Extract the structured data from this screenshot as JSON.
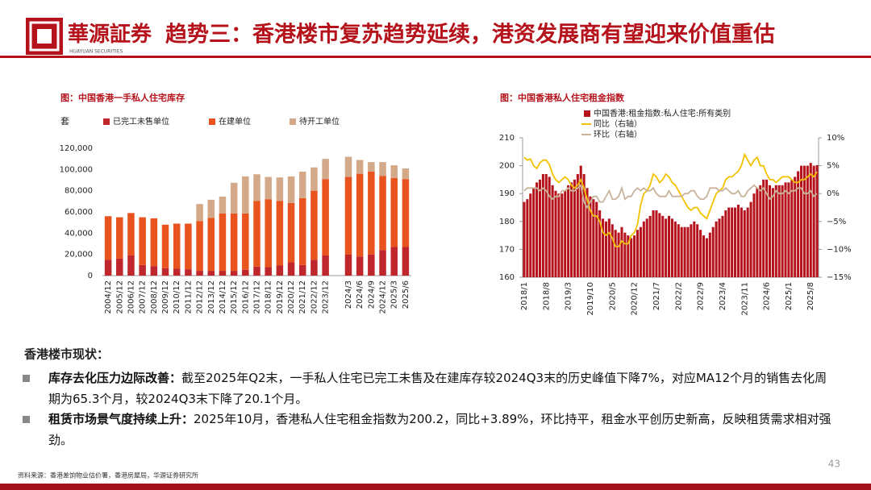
{
  "header": {
    "logo_text": "華源証券",
    "logo_subtext": "HUAYUAN SECURITIES",
    "title": "趋势三：香港楼市复苏趋势延续，港资发展商有望迎来价值重估"
  },
  "chart_data": [
    {
      "type": "bar",
      "stacked": true,
      "title": "图：中国香港一手私人住宅库存",
      "ylabel": "套",
      "categories": [
        "2004/12",
        "2005/12",
        "2006/12",
        "2007/12",
        "2008/12",
        "2009/12",
        "2010/12",
        "2011/12",
        "2012/12",
        "2013/12",
        "2014/12",
        "2015/12",
        "2016/12",
        "2017/12",
        "2018/12",
        "2019/12",
        "2020/12",
        "2021/12",
        "2022/12",
        "2023/12",
        null,
        "2024/3",
        "2024/6",
        "2024/9",
        "2024/12",
        "2025/3",
        "2025/6"
      ],
      "series": [
        {
          "name": "已完工未售单位",
          "color": "#c0272d",
          "values": [
            15000,
            16000,
            19000,
            10000,
            9000,
            7000,
            6500,
            6000,
            4500,
            4500,
            4500,
            4500,
            5500,
            8500,
            8000,
            9500,
            12500,
            10000,
            15000,
            19000,
            null,
            20000,
            18000,
            20000,
            24000,
            27000,
            27000
          ]
        },
        {
          "name": "在建单位",
          "color": "#e8531e",
          "values": [
            41000,
            39000,
            40000,
            45000,
            45000,
            41000,
            42500,
            43000,
            47000,
            50000,
            54000,
            54000,
            53000,
            62000,
            64000,
            61000,
            56000,
            63000,
            65000,
            72000,
            null,
            73000,
            78000,
            78000,
            70000,
            65000,
            64000
          ]
        },
        {
          "name": "待开工单位",
          "color": "#d4a98a",
          "values": [
            0,
            0,
            0,
            0,
            0,
            0,
            0,
            0,
            16000,
            17000,
            16000,
            29000,
            35000,
            25000,
            21000,
            22000,
            25000,
            25000,
            22000,
            19000,
            null,
            19000,
            13000,
            9000,
            13000,
            12000,
            10000
          ]
        }
      ],
      "ylim": [
        0,
        120000
      ],
      "yticks": [
        0,
        {
          "value": 20000,
          "label": "20,000"
        },
        {
          "value": 40000,
          "label": "40,000"
        },
        {
          "value": 60000,
          "label": "60,000"
        },
        {
          "value": 80000,
          "label": "80,000"
        },
        {
          "value": 100000,
          "label": "100,000"
        },
        {
          "value": 120000,
          "label": "120,000"
        }
      ],
      "grid": false,
      "legend": "top"
    },
    {
      "type": "bar",
      "title": "图：中国香港私人住宅租金指数",
      "categories": [
        "2018/1",
        null,
        null,
        null,
        null,
        null,
        null,
        "2018/8",
        null,
        null,
        null,
        null,
        null,
        null,
        "2019/3",
        null,
        null,
        null,
        null,
        null,
        null,
        "2019/10",
        null,
        null,
        null,
        null,
        null,
        null,
        "2020/5",
        null,
        null,
        null,
        null,
        null,
        null,
        "2020/12",
        null,
        null,
        null,
        null,
        null,
        null,
        "2021/7",
        null,
        null,
        null,
        null,
        null,
        null,
        "2022/2",
        null,
        null,
        null,
        null,
        null,
        null,
        "2022/9",
        null,
        null,
        null,
        null,
        null,
        null,
        "2023/4",
        null,
        null,
        null,
        null,
        null,
        null,
        "2023/11",
        null,
        null,
        null,
        null,
        null,
        null,
        "2024/6",
        null,
        null,
        null,
        null,
        null,
        null,
        "2025/1",
        null,
        null,
        null,
        null,
        null,
        null,
        "2025/8",
        null,
        null
      ],
      "series": [
        {
          "name": "中国香港:租金指数:私人住宅:所有类别",
          "color": "#b5121b",
          "type": "bar",
          "values": [
            187,
            188,
            190,
            192,
            194,
            195,
            197,
            197,
            196,
            193,
            191,
            190,
            190,
            191,
            193,
            194,
            195,
            197,
            200,
            197,
            192,
            189,
            188,
            187,
            184,
            181,
            180,
            181,
            179,
            177,
            176,
            178,
            176,
            175,
            174,
            175,
            177,
            178,
            180,
            181,
            182,
            184,
            184,
            183,
            182,
            181,
            182,
            181,
            180,
            179,
            178,
            178,
            178,
            179,
            180,
            179,
            177,
            175,
            174,
            176,
            178,
            180,
            181,
            182,
            184,
            185,
            185,
            185,
            186,
            185,
            184,
            185,
            187,
            190,
            192,
            193,
            195,
            195,
            193,
            192,
            193,
            193,
            193,
            194,
            194,
            195,
            196,
            198,
            200,
            200,
            200,
            201,
            200,
            200.2
          ]
        },
        {
          "name": "同比（右轴）",
          "color": "#f2c200",
          "type": "line",
          "axis": "y2",
          "values": [
            6.5,
            6.0,
            6.2,
            5.0,
            4.5,
            5.5,
            6.0,
            6.0,
            5.2,
            3.5,
            2.5,
            2.0,
            2.5,
            3.0,
            2.5,
            1.5,
            1.0,
            1.5,
            2.5,
            1.0,
            -1.0,
            -3.0,
            -4.0,
            -4.0,
            -5.0,
            -7.0,
            -7.5,
            -7.0,
            -8.0,
            -9.5,
            -9.5,
            -8.5,
            -9.0,
            -9.0,
            -7.5,
            -7.0,
            -5.5,
            -2.0,
            0.0,
            0.5,
            1.5,
            3.5,
            3.0,
            2.0,
            2.5,
            3.5,
            3.0,
            2.0,
            1.5,
            0.5,
            -0.5,
            -1.5,
            -2.5,
            -3.0,
            -2.5,
            -2.5,
            -3.5,
            -4.0,
            -4.5,
            -3.0,
            -1.5,
            0.0,
            0.5,
            1.0,
            2.5,
            3.0,
            3.0,
            3.5,
            4.0,
            5.0,
            7.0,
            6.0,
            5.0,
            6.0,
            6.5,
            5.0,
            5.0,
            3.5,
            2.5,
            2.5,
            2.0,
            2.5,
            3.0,
            3.0,
            3.0,
            2.5,
            2.0,
            2.0,
            2.5,
            2.5,
            3.0,
            3.5,
            3.0,
            3.89
          ]
        },
        {
          "name": "环比（右轴）",
          "color": "#c9b49b",
          "type": "line",
          "axis": "y2",
          "values": [
            0.5,
            1.0,
            1.0,
            1.0,
            1.0,
            0.5,
            1.0,
            0.5,
            -0.5,
            -1.0,
            -0.5,
            -0.5,
            0.5,
            0.5,
            1.0,
            0.5,
            0.5,
            1.0,
            1.5,
            -1.5,
            -2.5,
            -1.5,
            -0.5,
            -0.5,
            -1.5,
            -1.5,
            -0.5,
            0.5,
            -1.0,
            -1.0,
            -0.5,
            1.0,
            -1.0,
            -0.5,
            -0.5,
            0.5,
            1.0,
            0.5,
            1.0,
            0.5,
            0.5,
            1.0,
            0.0,
            -0.5,
            -0.5,
            -0.5,
            0.5,
            -0.5,
            -0.5,
            -0.5,
            -0.5,
            0.0,
            0.0,
            0.5,
            0.5,
            -0.5,
            -1.0,
            -1.0,
            -0.5,
            1.0,
            1.0,
            1.0,
            0.5,
            0.5,
            1.0,
            0.5,
            0.0,
            0.0,
            0.5,
            -0.5,
            -0.5,
            0.5,
            1.0,
            1.5,
            1.0,
            0.5,
            1.0,
            0.0,
            -1.0,
            -0.5,
            0.5,
            0.0,
            0.0,
            0.5,
            0.0,
            0.5,
            0.5,
            1.0,
            1.0,
            0.0,
            0.0,
            0.5,
            -0.5,
            0.0
          ]
        }
      ],
      "ylim": [
        160,
        210
      ],
      "yticks": [
        160,
        170,
        180,
        190,
        200,
        210
      ],
      "y2lim": [
        -15,
        10
      ],
      "y2ticks": [
        {
          "value": 10,
          "label": "10%"
        },
        {
          "value": 5,
          "label": "5%"
        },
        {
          "value": 0,
          "label": "0%"
        },
        {
          "value": -5,
          "label": "−5%"
        },
        {
          "value": -10,
          "label": "−10%"
        },
        {
          "value": -15,
          "label": "−15%"
        }
      ],
      "grid": false,
      "legend": "top"
    }
  ],
  "text": {
    "heading": "香港楼市现状：",
    "bullets": [
      {
        "lead": "库存去化压力边际改善：",
        "body": "截至2025年Q2末，一手私人住宅已完工未售及在建库存较2024Q3末的历史峰值下降7%，对应MA12个月的销售去化周期为65.3个月，较2024Q3末下降了20.1个月。"
      },
      {
        "lead": "租赁市场景气度持续上升：",
        "body": "2025年10月，香港私人住宅租金指数为200.2，同比+3.89%，环比持平，租金水平创历史新高，反映租赁需求相对强劲。"
      }
    ]
  },
  "footer": {
    "source": "资料来源：香港差饷物业估价署，香港房屋局，华源证券研究所",
    "page": "43"
  }
}
